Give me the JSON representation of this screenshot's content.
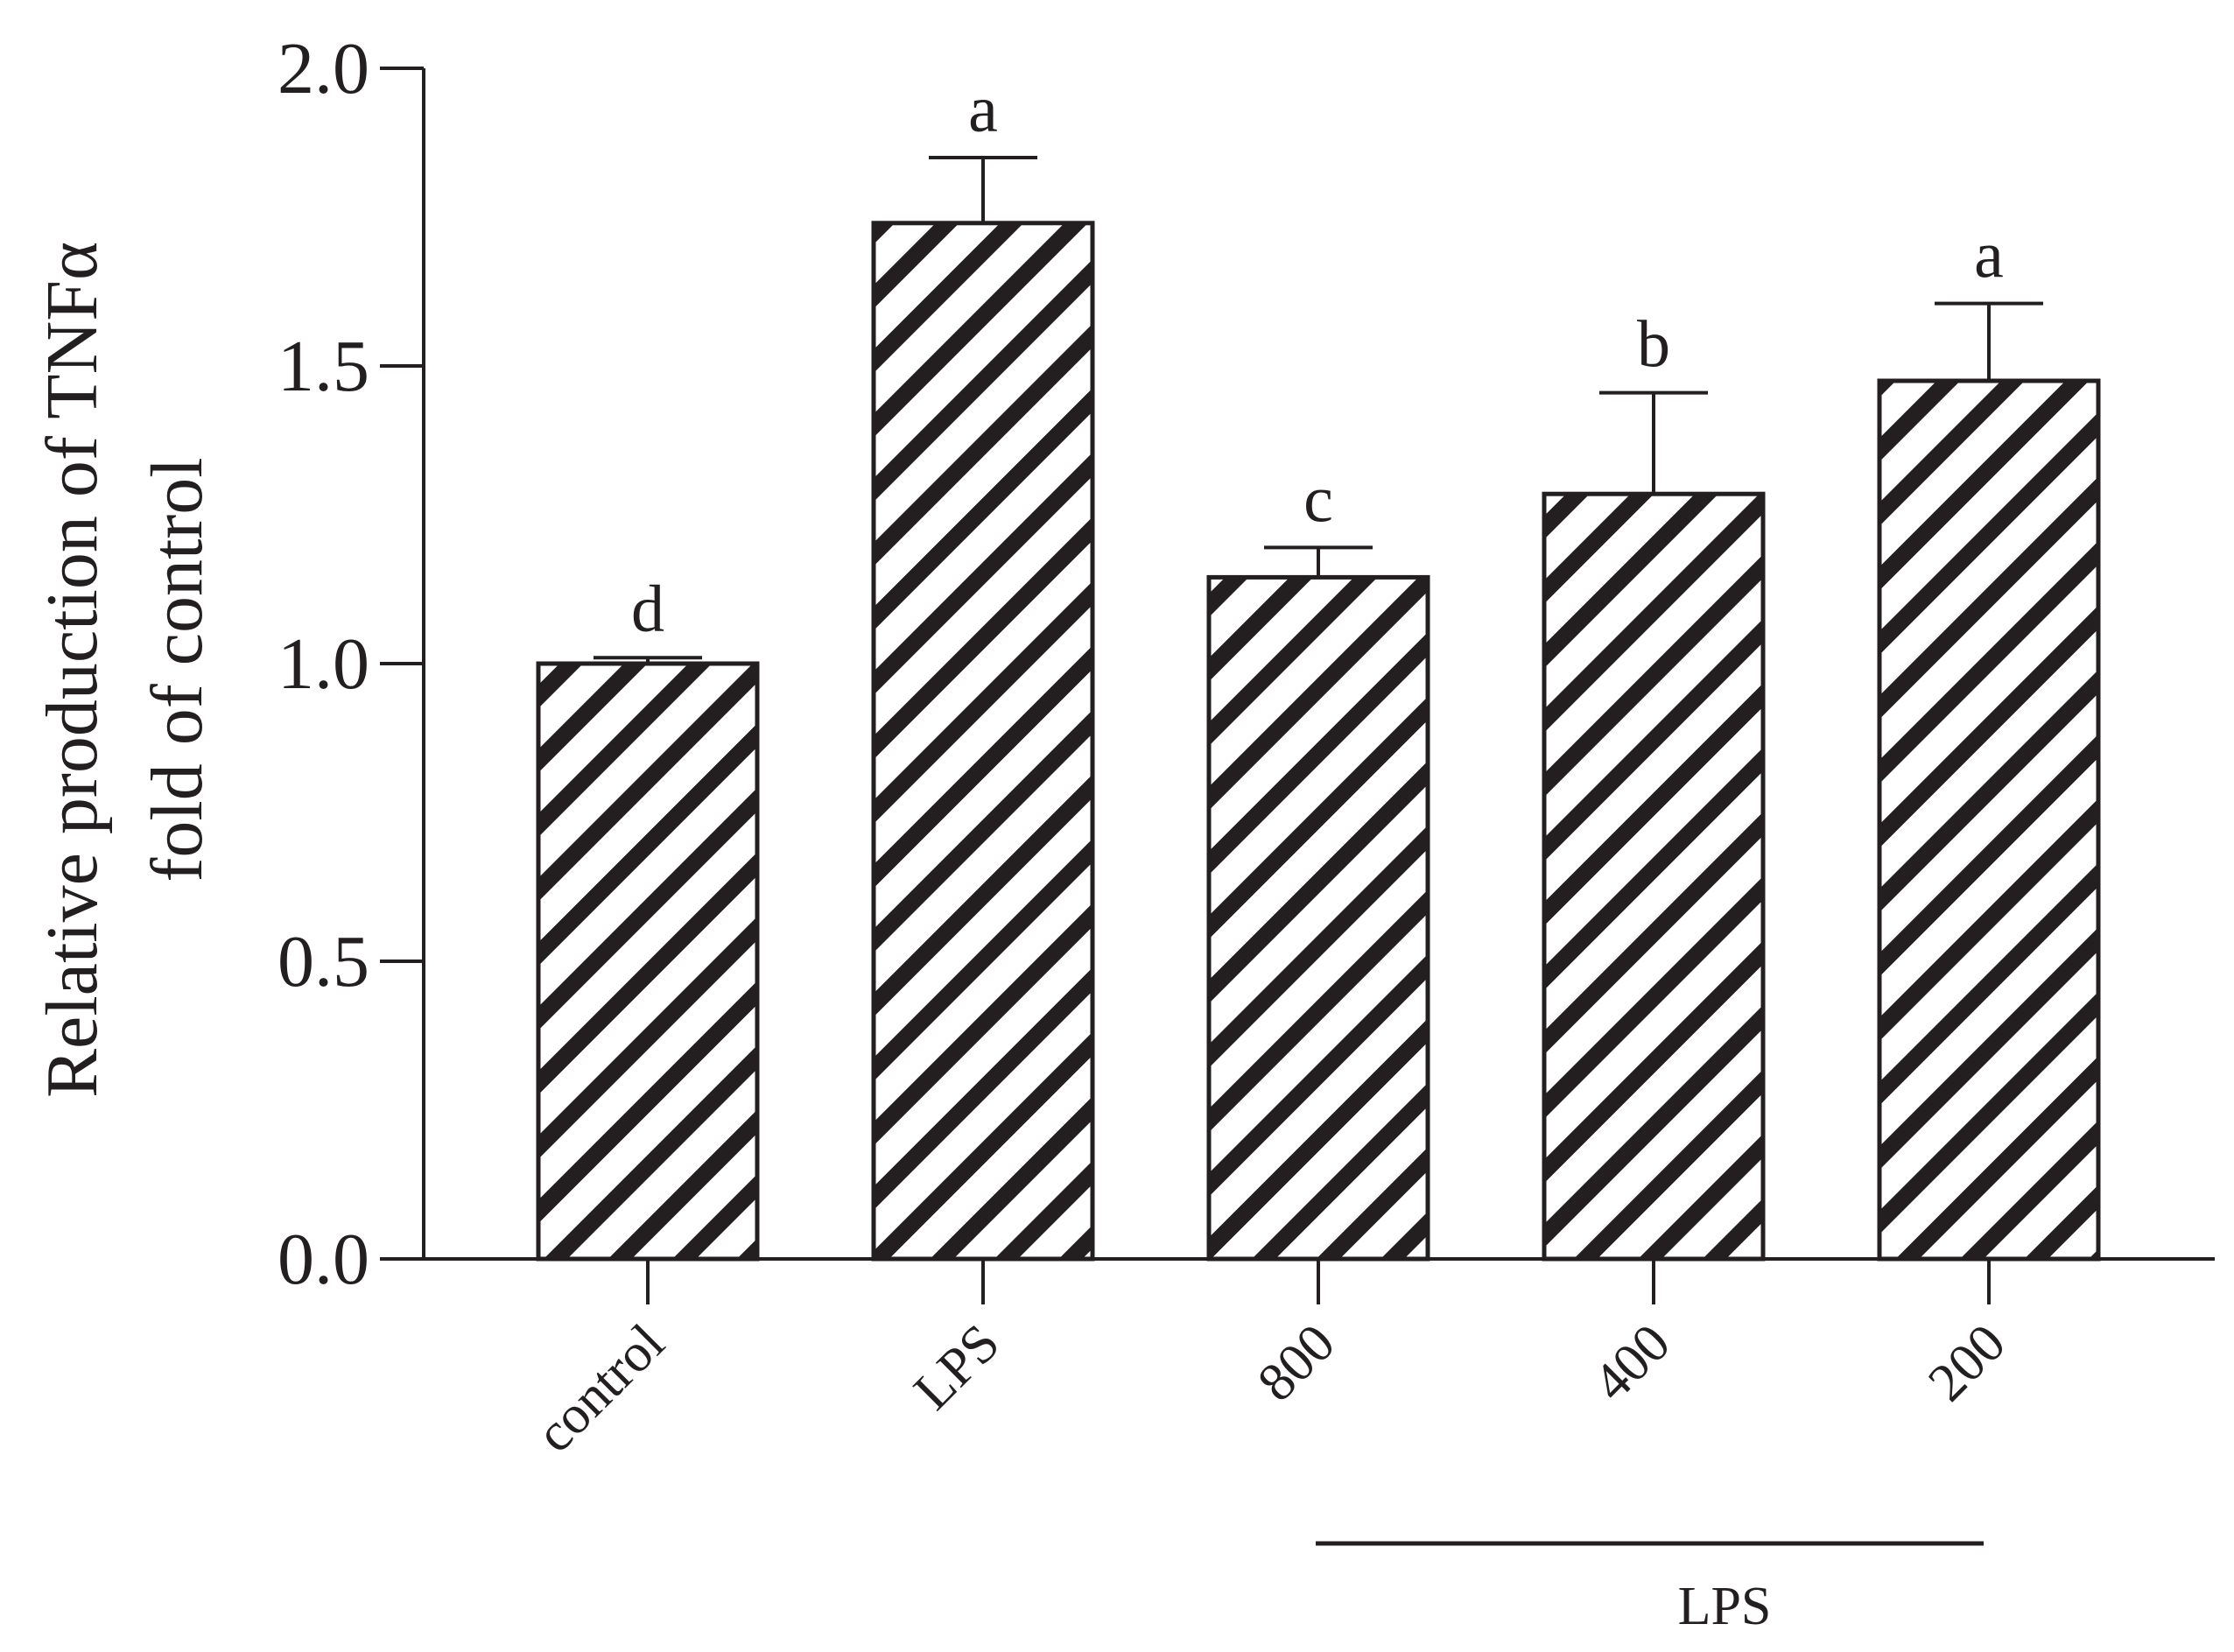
{
  "chart_data": {
    "type": "bar",
    "categories": [
      "control",
      "LPS",
      "800",
      "400",
      "200"
    ],
    "values": [
      1.0,
      1.74,
      1.145,
      1.285,
      1.475
    ],
    "errors": [
      0.01,
      0.11,
      0.05,
      0.17,
      0.13
    ],
    "significance": [
      "d",
      "a",
      "c",
      "b",
      "a"
    ],
    "ylabel_line1": "Relative production of TNFα",
    "ylabel_line2": "fold of control",
    "ylim": [
      0,
      2.0
    ],
    "yticks": [
      "0.0",
      "0.5",
      "1.0",
      "1.5",
      "2.0"
    ],
    "ytick_values": [
      0,
      0.5,
      1.0,
      1.5,
      2.0
    ],
    "group_bracket": {
      "label": "LPS",
      "from_category": "800",
      "to_category": "200"
    },
    "bar_fill": "hatched",
    "colors": {
      "ink": "#231f20",
      "background": "#ffffff"
    }
  }
}
